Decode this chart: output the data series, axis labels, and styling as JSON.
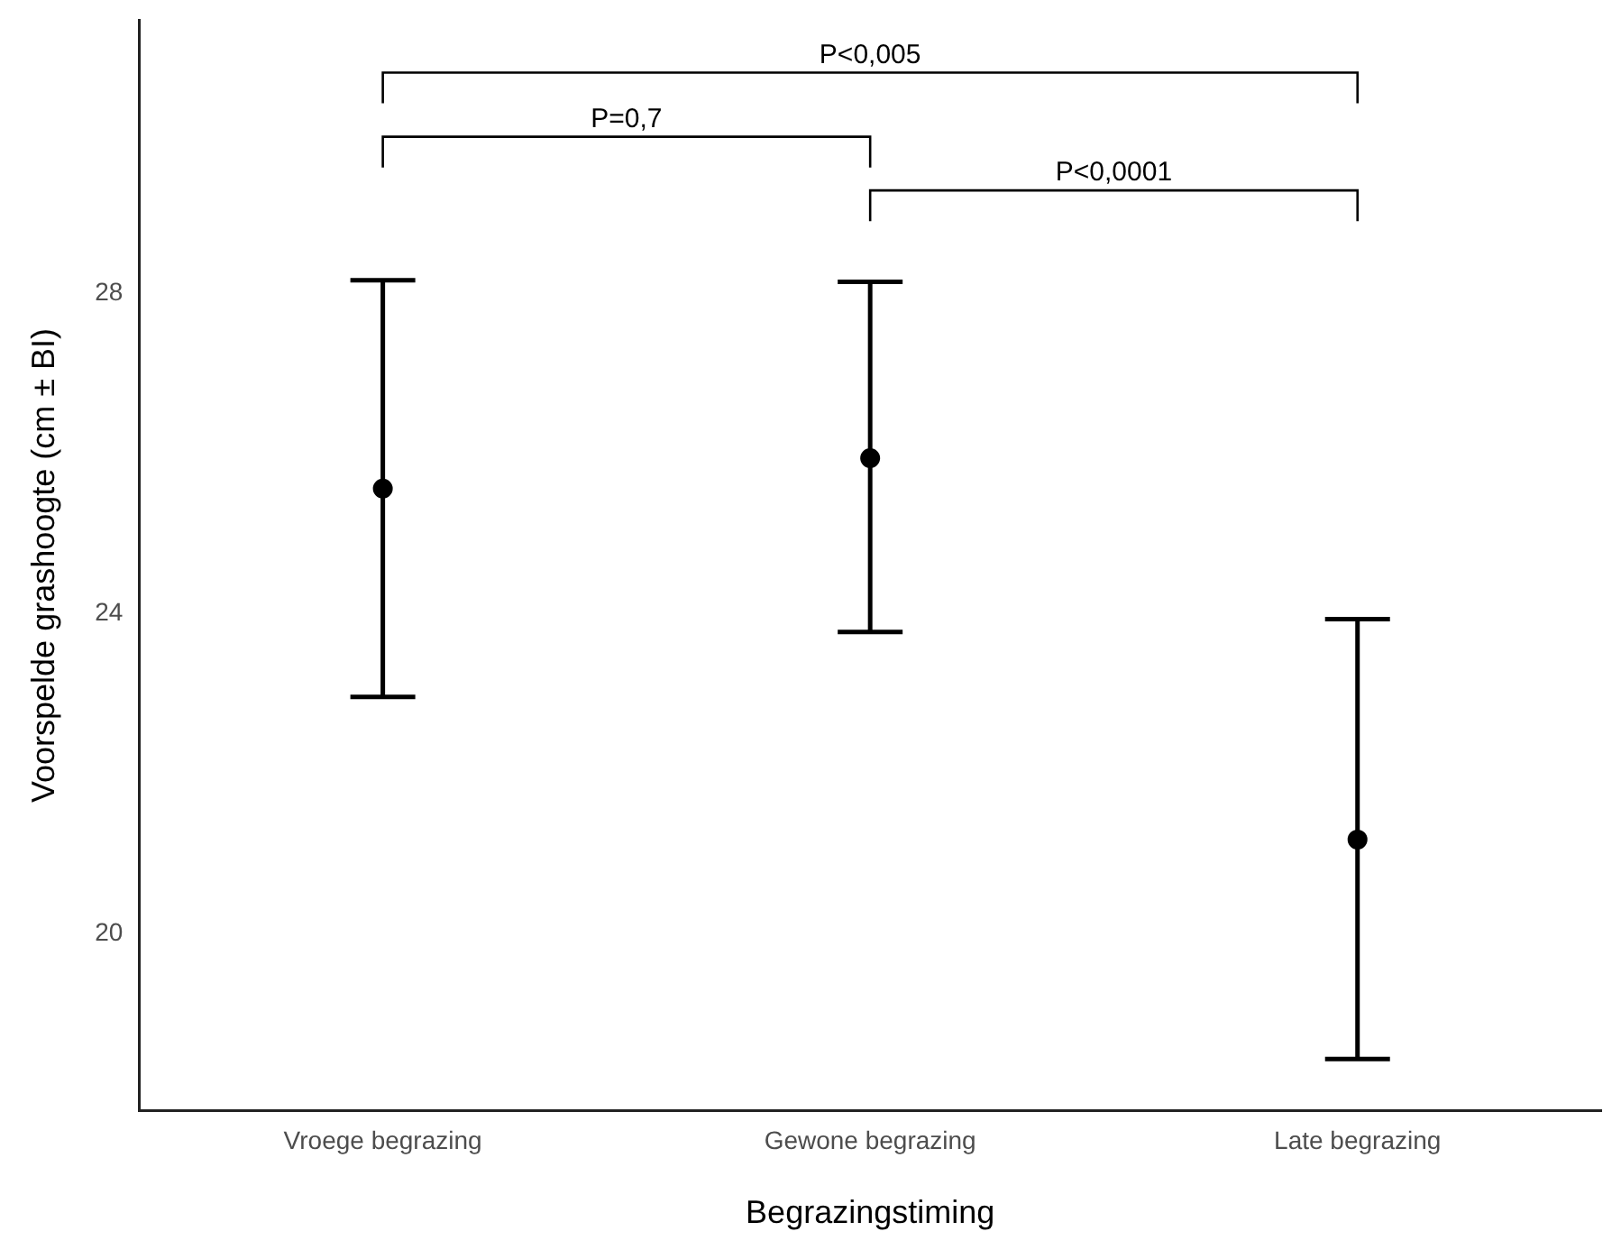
{
  "chart_data": {
    "type": "scatter",
    "xlabel": "Begrazingstiming",
    "ylabel": "Voorspelde grashoogte (cm ± BI)",
    "categories": [
      "Vroege begrazing",
      "Gewone begrazing",
      "Late begrazing"
    ],
    "values": [
      25.56,
      25.94,
      21.18
    ],
    "color": "#000000",
    "errors": [
      [
        22.96,
        28.16
      ],
      [
        23.77,
        28.14
      ],
      [
        18.44,
        23.93
      ]
    ],
    "ylim": [
      17.8,
      31.4
    ],
    "yticks": [
      20,
      24,
      28
    ],
    "grid": false,
    "legend": false,
    "marker": "circle",
    "annotations": [
      "P<0,005",
      "P=0,7",
      "P<0,0001"
    ]
  }
}
